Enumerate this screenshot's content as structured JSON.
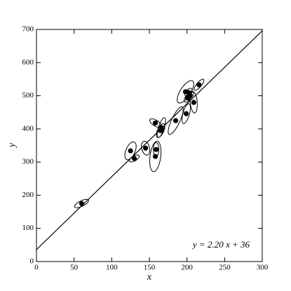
{
  "chart_data": {
    "type": "scatter",
    "xlabel": "x",
    "ylabel": "y",
    "annotation": "y = 2.20 x + 36",
    "fit_slope": 2.2,
    "fit_intercept": 36,
    "color": "#000000",
    "xlim": [
      0,
      300
    ],
    "ylim": [
      0,
      700
    ],
    "xticks": [
      0,
      50,
      100,
      150,
      200,
      250,
      300
    ],
    "yticks": [
      0,
      100,
      200,
      300,
      400,
      500,
      600,
      700
    ],
    "x": [
      60,
      125,
      130,
      145,
      158,
      158,
      159,
      165,
      166,
      185,
      198,
      199,
      201,
      204,
      202,
      209,
      216
    ],
    "y": [
      175,
      334,
      311,
      342,
      418,
      317,
      338,
      395,
      404,
      425,
      512,
      446,
      493,
      501,
      510,
      480,
      533
    ],
    "x_err": [
      9.3,
      7.5,
      6.5,
      5.6,
      7.5,
      7.5,
      3.7,
      5.6,
      5.6,
      10,
      11,
      5.6,
      4.7,
      4.7,
      4.7,
      4.7,
      6.5
    ],
    "y_err": [
      12.7,
      27,
      10.6,
      21,
      12.7,
      46,
      21,
      21,
      30,
      42,
      34,
      30,
      12.7,
      12.7,
      12.7,
      32,
      17
    ],
    "rho": [
      0.7,
      0.5,
      0.6,
      -0.3,
      -0.6,
      0.3,
      0,
      0.6,
      0.7,
      0.8,
      0.7,
      0.6,
      0.5,
      0.5,
      0.5,
      -0.2,
      0.8
    ]
  }
}
